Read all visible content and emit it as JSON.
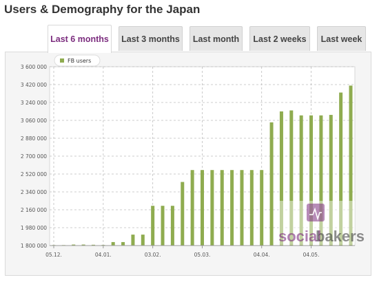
{
  "page": {
    "title": "Users & Demography for the Japan"
  },
  "tabs": [
    {
      "label": "Last 6 months",
      "active": true
    },
    {
      "label": "Last 3 months",
      "active": false
    },
    {
      "label": "Last month",
      "active": false
    },
    {
      "label": "Last 2 weeks",
      "active": false
    },
    {
      "label": "Last week",
      "active": false
    }
  ],
  "watermark": {
    "brand_part1": "social",
    "brand_part2": "bakers"
  },
  "colors": {
    "bar": "#8fac50",
    "active_tab": "#7b2c7e",
    "watermark_brand1": "#7b2c7e",
    "watermark_brand2": "#444444"
  },
  "chart_data": {
    "type": "bar",
    "legend": [
      "FB users"
    ],
    "legend_position": "top-left",
    "grid": true,
    "ylim": [
      1800000,
      3600000
    ],
    "y_ticks": [
      "1 800 000",
      "1 980 000",
      "2 160 000",
      "2 340 000",
      "2 520 000",
      "2 700 000",
      "2 880 000",
      "3 060 000",
      "3 240 000",
      "3 420 000",
      "3 600 000"
    ],
    "x_tick_labels": [
      {
        "label": "05.12.",
        "index": 0
      },
      {
        "label": "04.01.",
        "index": 5
      },
      {
        "label": "03.02.",
        "index": 10
      },
      {
        "label": "05.03.",
        "index": 15
      },
      {
        "label": "04.04.",
        "index": 21
      },
      {
        "label": "04.05.",
        "index": 26
      }
    ],
    "series": [
      {
        "name": "FB users",
        "values": [
          1805000,
          1805000,
          1810000,
          1810000,
          1808000,
          1806000,
          1835000,
          1835000,
          1910000,
          1910000,
          2200000,
          2200000,
          2200000,
          2440000,
          2560000,
          2560000,
          2560000,
          2560000,
          2560000,
          2560000,
          2560000,
          2560000,
          3040000,
          3150000,
          3160000,
          3110000,
          3110000,
          3110000,
          3115000,
          3340000,
          3410000
        ]
      }
    ]
  }
}
